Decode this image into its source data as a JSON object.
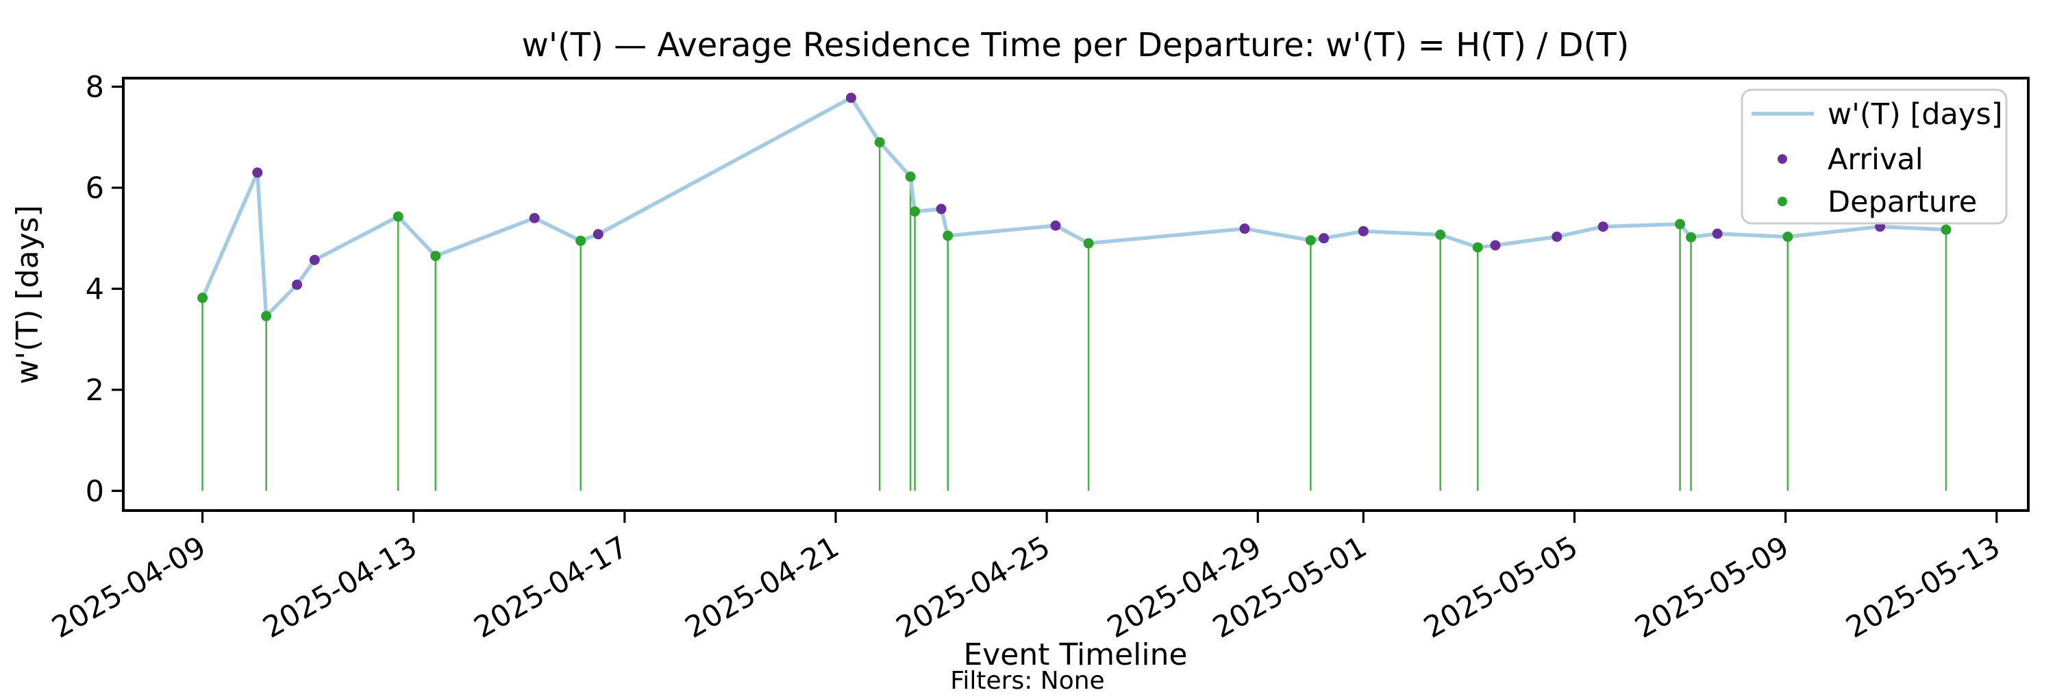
{
  "colors": {
    "line": "#a5cbe2",
    "arrival": "#6a3099",
    "departure": "#2ca02c",
    "vline": "#2ca02c",
    "axis": "#000000",
    "legend_border": "#cccccc",
    "background": "#ffffff"
  },
  "legend": {
    "items": [
      {
        "label": "w'(T) [days]",
        "marker": "line-sample"
      },
      {
        "label": "Arrival",
        "marker": "arrival-dot"
      },
      {
        "label": "Departure",
        "marker": "departure-dot"
      }
    ]
  },
  "chart_data": {
    "type": "line",
    "title": "w'(T) — Average Residence Time per Departure: w'(T) = H(T) / D(T)",
    "xlabel": "Event Timeline",
    "ylabel": "w'(T) [days]",
    "footnote": "Filters: None",
    "series_label": "w'(T) [days]",
    "legend_position": "upper right",
    "grid": false,
    "x_epoch": "2025-04-09",
    "xlim_days": [
      -1.5,
      34.6
    ],
    "ylim": [
      -0.39,
      8.17
    ],
    "y_ticks": [
      0,
      2,
      4,
      6,
      8
    ],
    "x_ticks": [
      "2025-04-09",
      "2025-04-13",
      "2025-04-17",
      "2025-04-21",
      "2025-04-25",
      "2025-04-29",
      "2025-05-01",
      "2025-05-05",
      "2025-05-09",
      "2025-05-13"
    ],
    "events": [
      {
        "t": "2025-04-09T00:00",
        "w": 3.82,
        "type": "departure"
      },
      {
        "t": "2025-04-10T01:00",
        "w": 6.3,
        "type": "arrival"
      },
      {
        "t": "2025-04-10T05:00",
        "w": 3.46,
        "type": "departure"
      },
      {
        "t": "2025-04-10T19:00",
        "w": 4.08,
        "type": "arrival"
      },
      {
        "t": "2025-04-11T03:00",
        "w": 4.57,
        "type": "arrival"
      },
      {
        "t": "2025-04-12T17:00",
        "w": 5.43,
        "type": "departure"
      },
      {
        "t": "2025-04-13T10:00",
        "w": 4.65,
        "type": "departure"
      },
      {
        "t": "2025-04-15T07:00",
        "w": 5.4,
        "type": "arrival"
      },
      {
        "t": "2025-04-16T04:00",
        "w": 4.95,
        "type": "departure"
      },
      {
        "t": "2025-04-16T12:00",
        "w": 5.08,
        "type": "arrival"
      },
      {
        "t": "2025-04-21T07:00",
        "w": 7.78,
        "type": "arrival"
      },
      {
        "t": "2025-04-21T20:00",
        "w": 6.9,
        "type": "departure"
      },
      {
        "t": "2025-04-22T10:00",
        "w": 6.22,
        "type": "departure"
      },
      {
        "t": "2025-04-22T12:00",
        "w": 5.53,
        "type": "departure"
      },
      {
        "t": "2025-04-23T00:00",
        "w": 5.58,
        "type": "arrival"
      },
      {
        "t": "2025-04-23T03:00",
        "w": 5.05,
        "type": "departure"
      },
      {
        "t": "2025-04-25T04:00",
        "w": 5.25,
        "type": "arrival"
      },
      {
        "t": "2025-04-25T19:00",
        "w": 4.9,
        "type": "departure"
      },
      {
        "t": "2025-04-28T18:00",
        "w": 5.19,
        "type": "arrival"
      },
      {
        "t": "2025-04-30T00:00",
        "w": 4.96,
        "type": "departure"
      },
      {
        "t": "2025-04-30T06:00",
        "w": 5.0,
        "type": "arrival"
      },
      {
        "t": "2025-05-01T00:00",
        "w": 5.14,
        "type": "arrival"
      },
      {
        "t": "2025-05-02T11:00",
        "w": 5.07,
        "type": "departure"
      },
      {
        "t": "2025-05-03T04:00",
        "w": 4.82,
        "type": "departure"
      },
      {
        "t": "2025-05-03T12:00",
        "w": 4.86,
        "type": "arrival"
      },
      {
        "t": "2025-05-04T16:00",
        "w": 5.03,
        "type": "arrival"
      },
      {
        "t": "2025-05-05T13:00",
        "w": 5.23,
        "type": "arrival"
      },
      {
        "t": "2025-05-07T00:00",
        "w": 5.28,
        "type": "departure"
      },
      {
        "t": "2025-05-07T05:00",
        "w": 5.02,
        "type": "departure"
      },
      {
        "t": "2025-05-07T17:00",
        "w": 5.09,
        "type": "arrival"
      },
      {
        "t": "2025-05-09T01:00",
        "w": 5.03,
        "type": "departure"
      },
      {
        "t": "2025-05-10T19:00",
        "w": 5.23,
        "type": "arrival"
      },
      {
        "t": "2025-05-12T01:00",
        "w": 5.17,
        "type": "departure"
      }
    ]
  }
}
